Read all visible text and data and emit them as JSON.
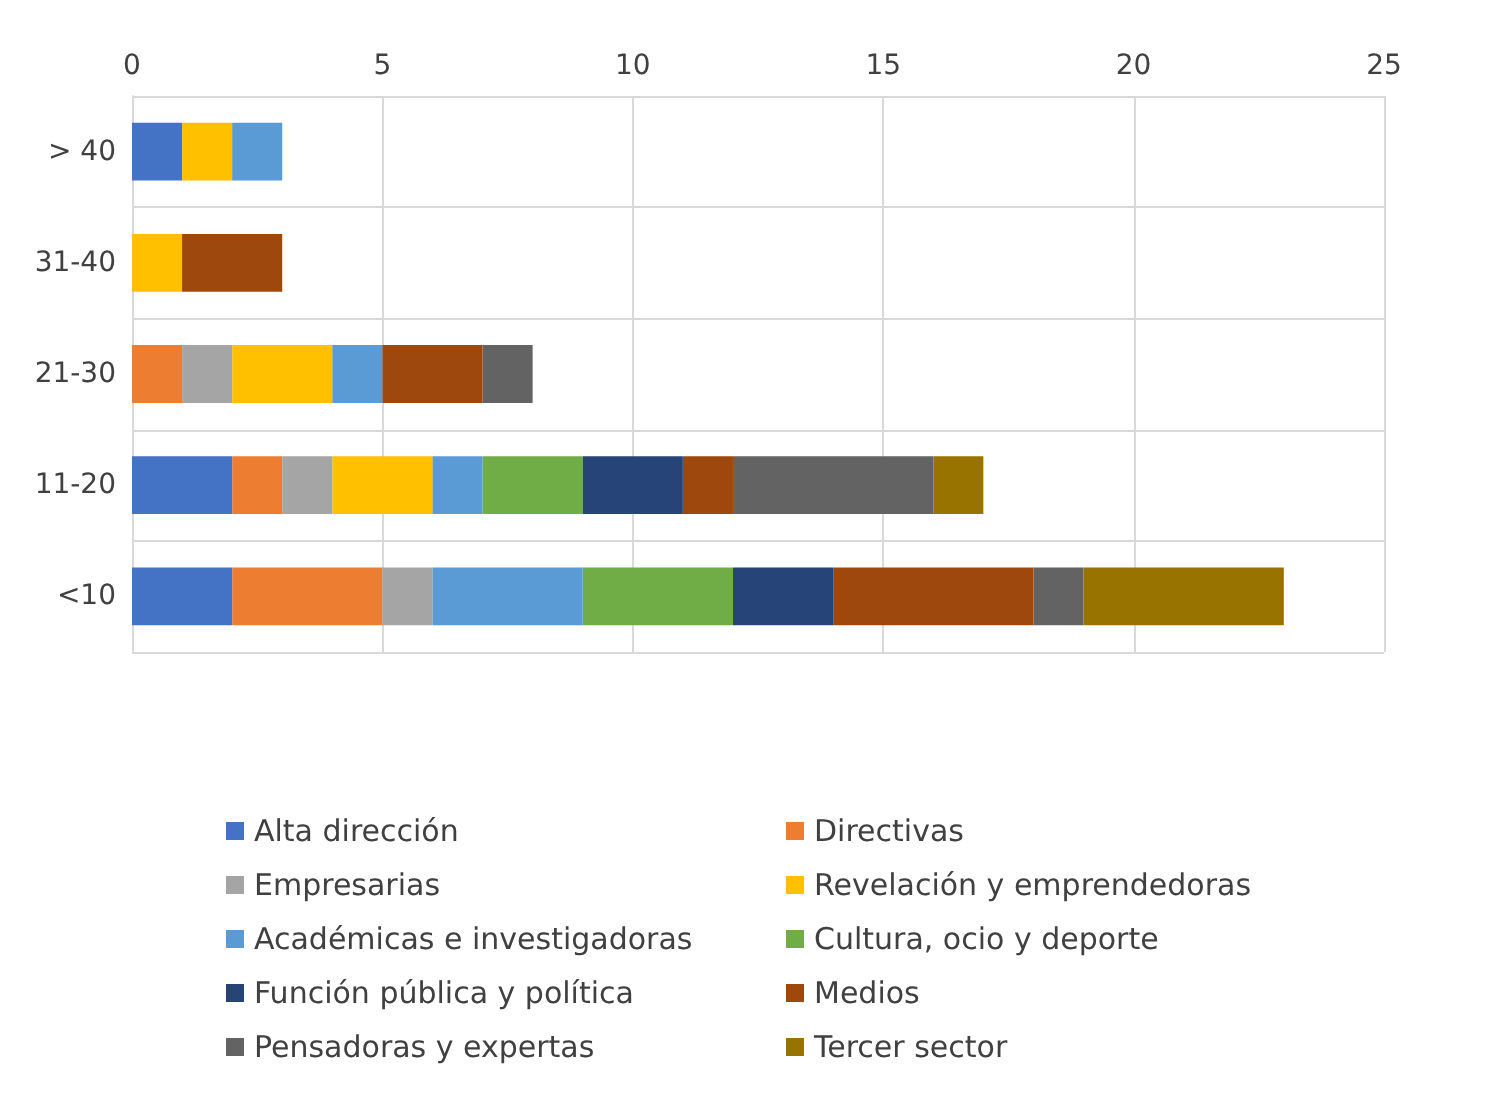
{
  "chart_data": {
    "type": "bar",
    "orientation": "horizontal",
    "stacked": true,
    "categories": [
      "> 40",
      "31-40",
      "21-30",
      "11-20",
      "<10"
    ],
    "xlim": [
      0,
      25
    ],
    "xticks": [
      0,
      5,
      10,
      15,
      20,
      25
    ],
    "grid": true,
    "legend": "bottom",
    "series": [
      {
        "name": "Alta dirección",
        "color": "#4472c4",
        "values": [
          1,
          null,
          null,
          2,
          2
        ]
      },
      {
        "name": "Directivas",
        "color": "#ed7d31",
        "values": [
          null,
          null,
          1,
          1,
          3
        ]
      },
      {
        "name": "Empresarias",
        "color": "#a5a5a5",
        "values": [
          null,
          null,
          1,
          1,
          1
        ]
      },
      {
        "name": "Revelación y emprendedoras",
        "color": "#ffc000",
        "values": [
          1,
          1,
          2,
          2,
          null
        ]
      },
      {
        "name": "Académicas e investigadoras",
        "color": "#5b9bd5",
        "values": [
          1,
          null,
          1,
          1,
          3
        ]
      },
      {
        "name": "Cultura, ocio y deporte",
        "color": "#70ad47",
        "values": [
          null,
          null,
          null,
          2,
          3
        ]
      },
      {
        "name": "Función pública y política",
        "color": "#264478",
        "values": [
          null,
          null,
          null,
          2,
          2
        ]
      },
      {
        "name": "Medios",
        "color": "#9e480e",
        "values": [
          null,
          2,
          2,
          1,
          4
        ]
      },
      {
        "name": "Pensadoras y expertas",
        "color": "#636363",
        "values": [
          null,
          null,
          1,
          4,
          1
        ]
      },
      {
        "name": "Tercer sector",
        "color": "#997300",
        "values": [
          null,
          null,
          null,
          1,
          4
        ]
      }
    ]
  }
}
